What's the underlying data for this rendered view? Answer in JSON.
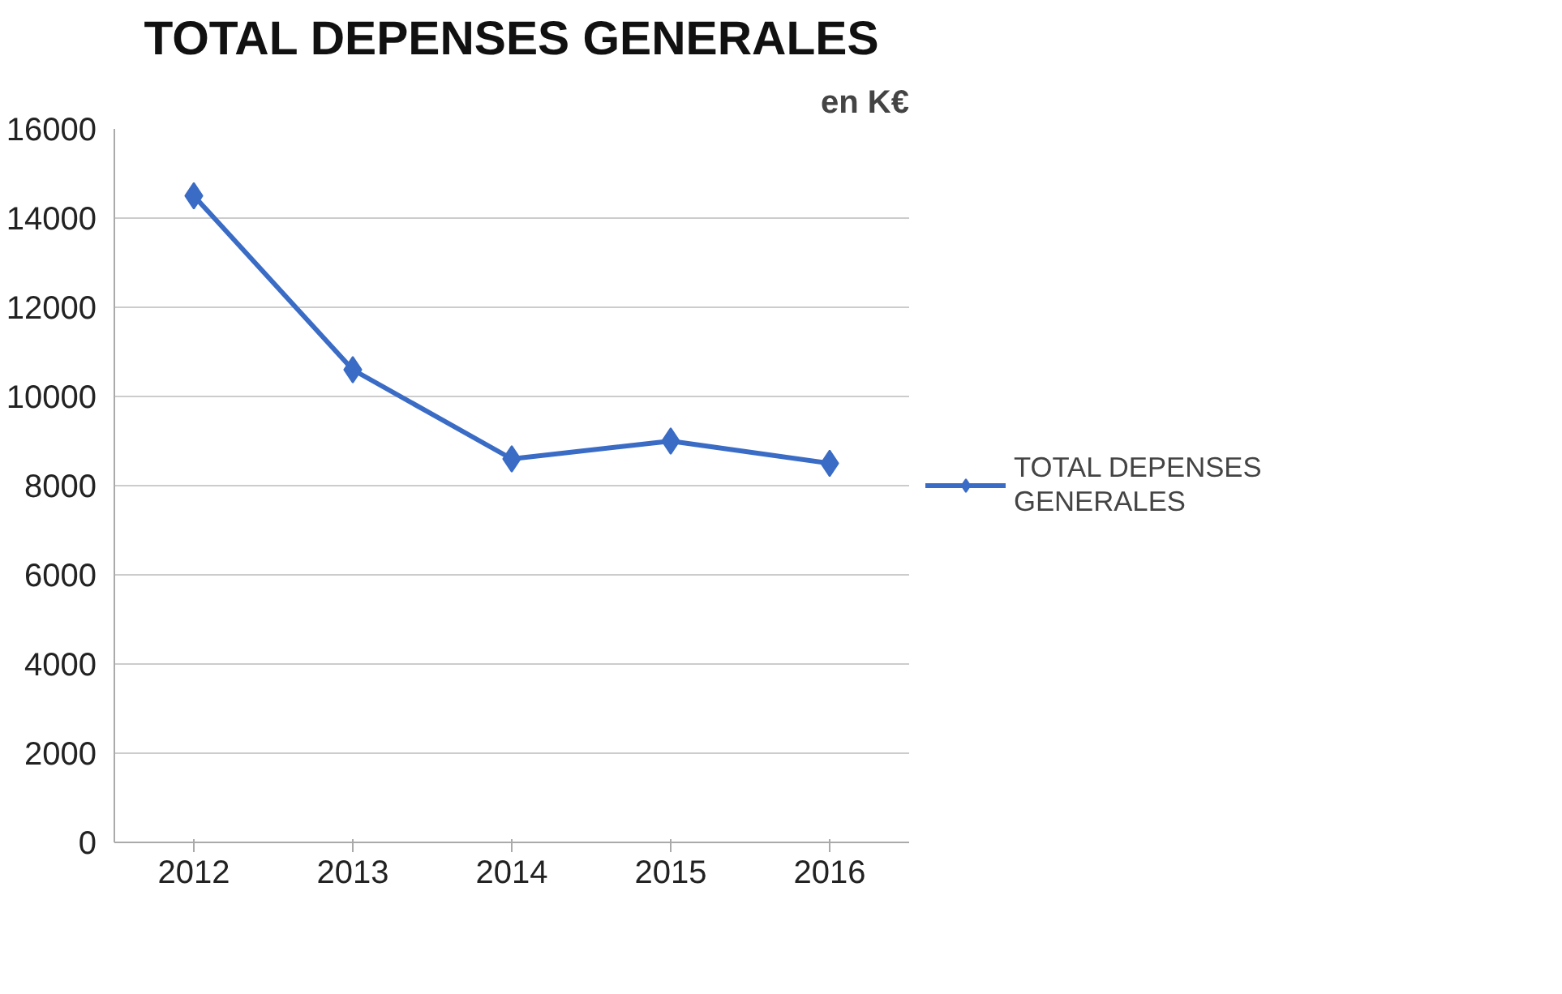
{
  "chart_data": {
    "type": "line",
    "title": "TOTAL DEPENSES GENERALES",
    "annotations": [
      "en K€"
    ],
    "categories": [
      "2012",
      "2013",
      "2014",
      "2015",
      "2016"
    ],
    "series": [
      {
        "name": "TOTAL DEPENSES GENERALES",
        "color": "#3a6cc6",
        "values": [
          14500,
          10600,
          8600,
          9000,
          8500
        ]
      }
    ],
    "ylim": [
      0,
      16000
    ],
    "yticks": [
      0,
      2000,
      4000,
      6000,
      8000,
      10000,
      12000,
      14000,
      16000
    ],
    "grid": "y",
    "legend": "right",
    "marker": "diamond",
    "line_style": "solid"
  }
}
